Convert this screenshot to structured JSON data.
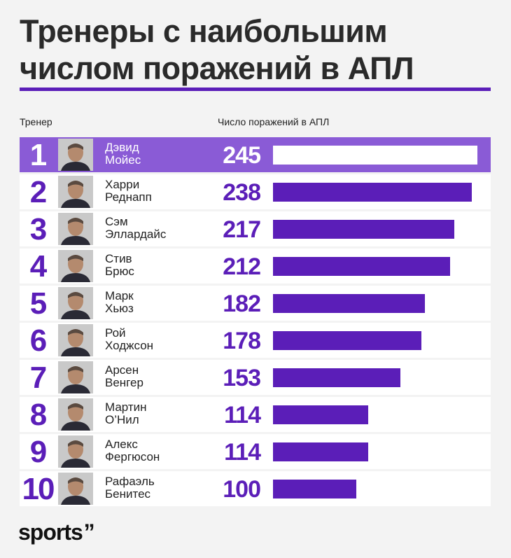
{
  "title": "Тренеры с наибольшим числом поражений в АПЛ",
  "headers": {
    "coach": "Тренер",
    "losses": "Число поражений в АПЛ"
  },
  "brand": {
    "name": "sports",
    "mark": "’’"
  },
  "colors": {
    "accent": "#5b1eb8",
    "highlight": "#8a5bd6",
    "row_bg": "#ffffff",
    "page_bg": "#f3f3f3"
  },
  "chart_data": {
    "type": "bar",
    "orientation": "horizontal",
    "xlim": [
      0,
      245
    ],
    "rows": [
      {
        "rank": "1",
        "first": "Дэвид",
        "last": "Мойес",
        "value": 245
      },
      {
        "rank": "2",
        "first": "Харри",
        "last": "Реднапп",
        "value": 238
      },
      {
        "rank": "3",
        "first": "Сэм",
        "last": "Эллардайс",
        "value": 217
      },
      {
        "rank": "4",
        "first": "Стив",
        "last": "Брюс",
        "value": 212
      },
      {
        "rank": "5",
        "first": "Марк",
        "last": "Хьюз",
        "value": 182
      },
      {
        "rank": "6",
        "first": "Рой",
        "last": "Ходжсон",
        "value": 178
      },
      {
        "rank": "7",
        "first": "Арсен",
        "last": "Венгер",
        "value": 153
      },
      {
        "rank": "8",
        "first": "Мартин",
        "last": "О’Нил",
        "value": 114
      },
      {
        "rank": "9",
        "first": "Алекс",
        "last": "Фергюсон",
        "value": 114
      },
      {
        "rank": "10",
        "first": "Рафаэль",
        "last": "Бенитес",
        "value": 100
      }
    ]
  }
}
